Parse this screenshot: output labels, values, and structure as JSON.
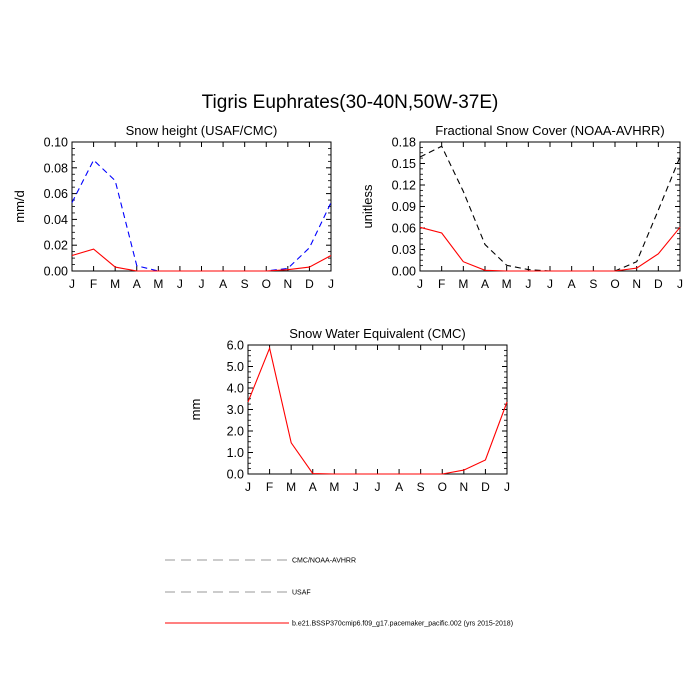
{
  "title": "Tigris Euphrates(30-40N,50W-37E)",
  "chart_data": [
    {
      "type": "line",
      "title": "Snow height (USAF/CMC)",
      "ylabel": "mm/d",
      "xlabel": "",
      "x": [
        "J",
        "F",
        "M",
        "A",
        "M",
        "J",
        "J",
        "A",
        "S",
        "O",
        "N",
        "D",
        "J"
      ],
      "ylim": [
        0,
        0.1
      ],
      "yticks": [
        "0.00",
        "0.02",
        "0.04",
        "0.06",
        "0.08",
        "0.10"
      ],
      "series": [
        {
          "name": "USAF",
          "color": "#0000ff",
          "dashed": true,
          "values": [
            0.053,
            0.086,
            0.07,
            0.004,
            0.0,
            0.0,
            0.0,
            0.0,
            0.0,
            0.0,
            0.002,
            0.018,
            0.053
          ]
        },
        {
          "name": "b.e21.BSSP370cmip6.f09_g17.pacemaker_pacific.002 (yrs 2015-2018)",
          "color": "#ff0000",
          "dashed": false,
          "values": [
            0.012,
            0.017,
            0.003,
            0.0,
            0.0,
            0.0,
            0.0,
            0.0,
            0.0,
            0.0,
            0.001,
            0.003,
            0.012
          ]
        }
      ]
    },
    {
      "type": "line",
      "title": "Fractional Snow Cover (NOAA-AVHRR)",
      "ylabel": "unitless",
      "xlabel": "",
      "x": [
        "J",
        "F",
        "M",
        "A",
        "M",
        "J",
        "J",
        "A",
        "S",
        "O",
        "N",
        "D",
        "J"
      ],
      "ylim": [
        0,
        0.18
      ],
      "yticks": [
        "0.00",
        "0.03",
        "0.06",
        "0.09",
        "0.12",
        "0.15",
        "0.18"
      ],
      "series": [
        {
          "name": "CMC/NOAA-AVHRR",
          "color": "#000000",
          "dashed": true,
          "values": [
            0.159,
            0.174,
            0.111,
            0.037,
            0.008,
            0.002,
            0.0,
            0.0,
            0.0,
            0.0,
            0.013,
            0.085,
            0.159
          ]
        },
        {
          "name": "b.e21.BSSP370cmip6.f09_g17.pacemaker_pacific.002 (yrs 2015-2018)",
          "color": "#ff0000",
          "dashed": false,
          "values": [
            0.061,
            0.053,
            0.013,
            0.001,
            0.0,
            0.0,
            0.0,
            0.0,
            0.0,
            0.0,
            0.004,
            0.024,
            0.061
          ]
        }
      ]
    },
    {
      "type": "line",
      "title": "Snow Water Equivalent (CMC)",
      "ylabel": "mm",
      "xlabel": "",
      "x": [
        "J",
        "F",
        "M",
        "A",
        "M",
        "J",
        "J",
        "A",
        "S",
        "O",
        "N",
        "D",
        "J"
      ],
      "ylim": [
        0,
        6
      ],
      "yticks": [
        "0.0",
        "1.0",
        "2.0",
        "3.0",
        "4.0",
        "5.0",
        "6.0"
      ],
      "series": [
        {
          "name": "CMC/NOAA-AVHRR",
          "color": "#000000",
          "dashed": true,
          "values": [
            0.0,
            0.0,
            0.0,
            0.0,
            0.0,
            0.0,
            0.0,
            0.0,
            0.0,
            0.0,
            0.0,
            0.0,
            0.0
          ]
        },
        {
          "name": "b.e21.BSSP370cmip6.f09_g17.pacemaker_pacific.002 (yrs 2015-2018)",
          "color": "#ff0000",
          "dashed": false,
          "values": [
            3.35,
            5.85,
            1.45,
            0.02,
            0.0,
            0.0,
            0.0,
            0.0,
            0.0,
            0.0,
            0.18,
            0.65,
            3.35
          ]
        }
      ]
    }
  ],
  "legend": [
    {
      "label": "CMC/NOAA-AVHRR",
      "color": "#999999",
      "dashed": true
    },
    {
      "label": "USAF",
      "color": "#999999",
      "dashed": true
    },
    {
      "label": "b.e21.BSSP370cmip6.f09_g17.pacemaker_pacific.002 (yrs 2015-2018)",
      "color": "#ff0000",
      "dashed": false
    }
  ]
}
